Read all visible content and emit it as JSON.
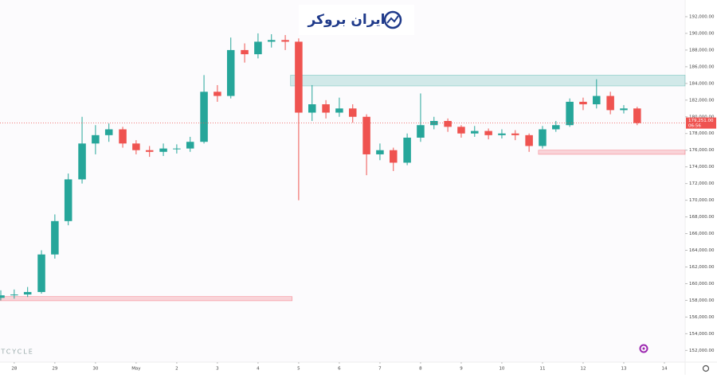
{
  "chart_data": {
    "type": "candlestick",
    "logo": "ایران بروکر",
    "watermark": "ITCYCLE",
    "x": [
      -0.33,
      0,
      0.33,
      0.67,
      1,
      1.33,
      1.67,
      2,
      2.33,
      2.67,
      3,
      3.33,
      3.67,
      4,
      4.33,
      4.67,
      5,
      5.33,
      5.67,
      6,
      6.33,
      6.67,
      7,
      7.33,
      7.67,
      8,
      8.33,
      8.67,
      9,
      9.33,
      9.67,
      10,
      10.33,
      10.67,
      11,
      11.33,
      11.67,
      12,
      12.33,
      12.67,
      13,
      13.33,
      13.67,
      14,
      14.33,
      14.67,
      15,
      15.33
    ],
    "open": [
      158300,
      158600,
      158700,
      159000,
      163500,
      167500,
      172500,
      176800,
      177800,
      178500,
      176800,
      176000,
      175800,
      176200,
      176200,
      177000,
      183000,
      182500,
      188000,
      187500,
      189000,
      189200,
      189000,
      180500,
      181500,
      180500,
      181000,
      180000,
      175500,
      176000,
      174500,
      177500,
      179000,
      179500,
      178800,
      178000,
      178300,
      177800,
      178000,
      177800,
      176500,
      178500,
      179000,
      181800,
      181500,
      182500,
      180800,
      181000
    ],
    "high": [
      159200,
      159300,
      159600,
      164000,
      168300,
      173200,
      180000,
      179000,
      179200,
      178800,
      177200,
      176500,
      176800,
      176700,
      177600,
      185000,
      183800,
      189500,
      188800,
      190000,
      189900,
      189800,
      189400,
      183800,
      182000,
      182300,
      181500,
      180300,
      176800,
      176300,
      178000,
      182800,
      180000,
      179800,
      179000,
      178900,
      178600,
      178500,
      178400,
      178000,
      178900,
      179500,
      182200,
      182300,
      184500,
      183000,
      181400,
      181200
    ],
    "low": [
      158000,
      158200,
      158400,
      158800,
      163000,
      167000,
      172000,
      175500,
      177000,
      176300,
      175500,
      175200,
      175300,
      175600,
      175800,
      176800,
      181800,
      182200,
      186500,
      187000,
      188300,
      188000,
      170000,
      179500,
      179800,
      180000,
      179300,
      173000,
      174800,
      173500,
      174200,
      177000,
      178500,
      178200,
      177500,
      177600,
      177300,
      177400,
      177200,
      175800,
      176200,
      178200,
      178800,
      180800,
      181000,
      180300,
      180400,
      179000
    ],
    "close": [
      158600,
      158700,
      159000,
      163500,
      167500,
      172500,
      176800,
      177800,
      178500,
      176800,
      176000,
      175800,
      176200,
      176200,
      177000,
      183000,
      182500,
      188000,
      187500,
      189000,
      189200,
      189000,
      180500,
      181500,
      180500,
      181000,
      180000,
      175500,
      176000,
      174500,
      177500,
      179000,
      179500,
      178800,
      178000,
      178300,
      177800,
      178000,
      177800,
      176500,
      178500,
      179000,
      181800,
      181500,
      182500,
      180800,
      181000,
      179251
    ],
    "up_color": "#26a69a",
    "down_color": "#ef5350",
    "zones": [
      {
        "x": [
          6.8,
          16.51
        ],
        "y": [
          183700,
          185000
        ],
        "color": "#26a69a"
      },
      {
        "x": [
          12.9,
          16.51
        ],
        "y": [
          175500,
          176000
        ],
        "color": "#f23645"
      },
      {
        "x": [
          -0.35,
          6.84
        ],
        "y": [
          157950,
          158450
        ],
        "color": "#f23645"
      }
    ],
    "price_line": {
      "value": 179251,
      "label": "179,251.00",
      "countdown": "06:56"
    },
    "xlim": [
      -0.35,
      16.51
    ],
    "xticks": [
      {
        "value": 0,
        "label": "28"
      },
      {
        "value": 1,
        "label": "29"
      },
      {
        "value": 2,
        "label": "30"
      },
      {
        "value": 3,
        "label": "May"
      },
      {
        "value": 4,
        "label": "2"
      },
      {
        "value": 5,
        "label": "3"
      },
      {
        "value": 6,
        "label": "4"
      },
      {
        "value": 7,
        "label": "5"
      },
      {
        "value": 8,
        "label": "6"
      },
      {
        "value": 9,
        "label": "7"
      },
      {
        "value": 10,
        "label": "8"
      },
      {
        "value": 11,
        "label": "9"
      },
      {
        "value": 12,
        "label": "10"
      },
      {
        "value": 13,
        "label": "11"
      },
      {
        "value": 14,
        "label": "12"
      },
      {
        "value": 15,
        "label": "13"
      },
      {
        "value": 16,
        "label": "14"
      }
    ],
    "ylim": [
      150600,
      194000
    ],
    "yticks": [
      {
        "value": 152000,
        "label": "152,000.00"
      },
      {
        "value": 154000,
        "label": "154,000.00"
      },
      {
        "value": 156000,
        "label": "156,000.00"
      },
      {
        "value": 158000,
        "label": "158,000.00"
      },
      {
        "value": 160000,
        "label": "160,000.00"
      },
      {
        "value": 162000,
        "label": "162,000.00"
      },
      {
        "value": 164000,
        "label": "164,000.00"
      },
      {
        "value": 166000,
        "label": "166,000.00"
      },
      {
        "value": 168000,
        "label": "168,000.00"
      },
      {
        "value": 170000,
        "label": "170,000.00"
      },
      {
        "value": 172000,
        "label": "172,000.00"
      },
      {
        "value": 174000,
        "label": "174,000.00"
      },
      {
        "value": 176000,
        "label": "176,000.00"
      },
      {
        "value": 178000,
        "label": "178,000.00"
      },
      {
        "value": 180000,
        "label": "180,000.00"
      },
      {
        "value": 182000,
        "label": "182,000.00"
      },
      {
        "value": 184000,
        "label": "184,000.00"
      },
      {
        "value": 186000,
        "label": "186,000.00"
      },
      {
        "value": 188000,
        "label": "188,000.00"
      },
      {
        "value": 190000,
        "label": "190,000.00"
      },
      {
        "value": 192000,
        "label": "192,000.00"
      }
    ]
  }
}
